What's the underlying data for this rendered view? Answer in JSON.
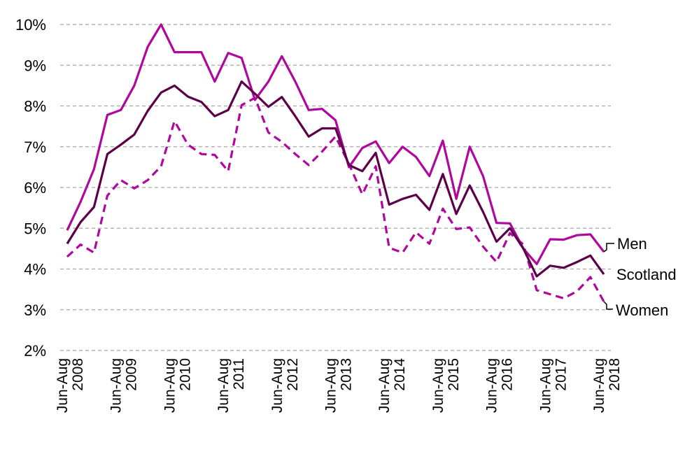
{
  "colors": {
    "men": "#b0079d",
    "scotland": "#5c0147",
    "women": "#b0079d",
    "grid": "#a6a6a6"
  },
  "chart_data": {
    "type": "line",
    "title": "",
    "xlabel": "",
    "ylabel": "",
    "ylim": [
      2,
      10
    ],
    "y_ticks": [
      "2%",
      "3%",
      "4%",
      "5%",
      "6%",
      "7%",
      "8%",
      "9%",
      "10%"
    ],
    "x_tick_labels": [
      [
        "Jun-Aug",
        "2008"
      ],
      [
        "Jun-Aug",
        "2009"
      ],
      [
        "Jun-Aug",
        "2010"
      ],
      [
        "Jun-Aug",
        "2011"
      ],
      [
        "Jun-Aug",
        "2012"
      ],
      [
        "Jun-Aug",
        "2013"
      ],
      [
        "Jun-Aug",
        "2014"
      ],
      [
        "Jun-Aug",
        "2015"
      ],
      [
        "Jun-Aug",
        "2016"
      ],
      [
        "Jun-Aug",
        "2017"
      ],
      [
        "Jun-Aug",
        "2018"
      ]
    ],
    "grid": true,
    "legend": "direct labels at right end of lines",
    "series": [
      {
        "name": "Men",
        "style": "solid",
        "values": [
          4.95,
          5.65,
          6.45,
          7.78,
          7.9,
          8.5,
          9.45,
          10.0,
          9.32,
          9.32,
          9.32,
          8.6,
          9.3,
          9.18,
          8.15,
          8.6,
          9.22,
          8.6,
          7.9,
          7.93,
          7.65,
          6.5,
          6.97,
          7.13,
          6.6,
          7.0,
          6.75,
          6.28,
          7.15,
          5.72,
          7.0,
          6.28,
          5.13,
          5.12,
          4.5,
          4.12,
          4.73,
          4.72,
          4.83,
          4.85,
          4.42
        ]
      },
      {
        "name": "Scotland",
        "style": "solid",
        "values": [
          4.62,
          5.15,
          5.52,
          6.82,
          7.05,
          7.3,
          7.88,
          8.33,
          8.5,
          8.23,
          8.1,
          7.75,
          7.9,
          8.6,
          8.3,
          7.98,
          8.22,
          7.75,
          7.25,
          7.45,
          7.45,
          6.55,
          6.4,
          6.85,
          5.58,
          5.72,
          5.82,
          5.45,
          6.33,
          5.35,
          6.05,
          5.4,
          4.67,
          5.0,
          4.5,
          3.82,
          4.08,
          4.03,
          4.17,
          4.33,
          3.87
        ]
      },
      {
        "name": "Women",
        "style": "dashed",
        "values": [
          4.3,
          4.6,
          4.4,
          5.8,
          6.18,
          5.98,
          6.18,
          6.52,
          7.63,
          7.05,
          6.82,
          6.8,
          6.4,
          8.02,
          8.2,
          7.35,
          7.12,
          6.82,
          6.55,
          6.88,
          7.25,
          6.58,
          5.83,
          6.52,
          4.52,
          4.4,
          4.9,
          4.62,
          5.48,
          4.98,
          5.02,
          4.55,
          4.17,
          4.88,
          4.6,
          3.48,
          3.38,
          3.28,
          3.45,
          3.8,
          3.2
        ]
      }
    ]
  }
}
